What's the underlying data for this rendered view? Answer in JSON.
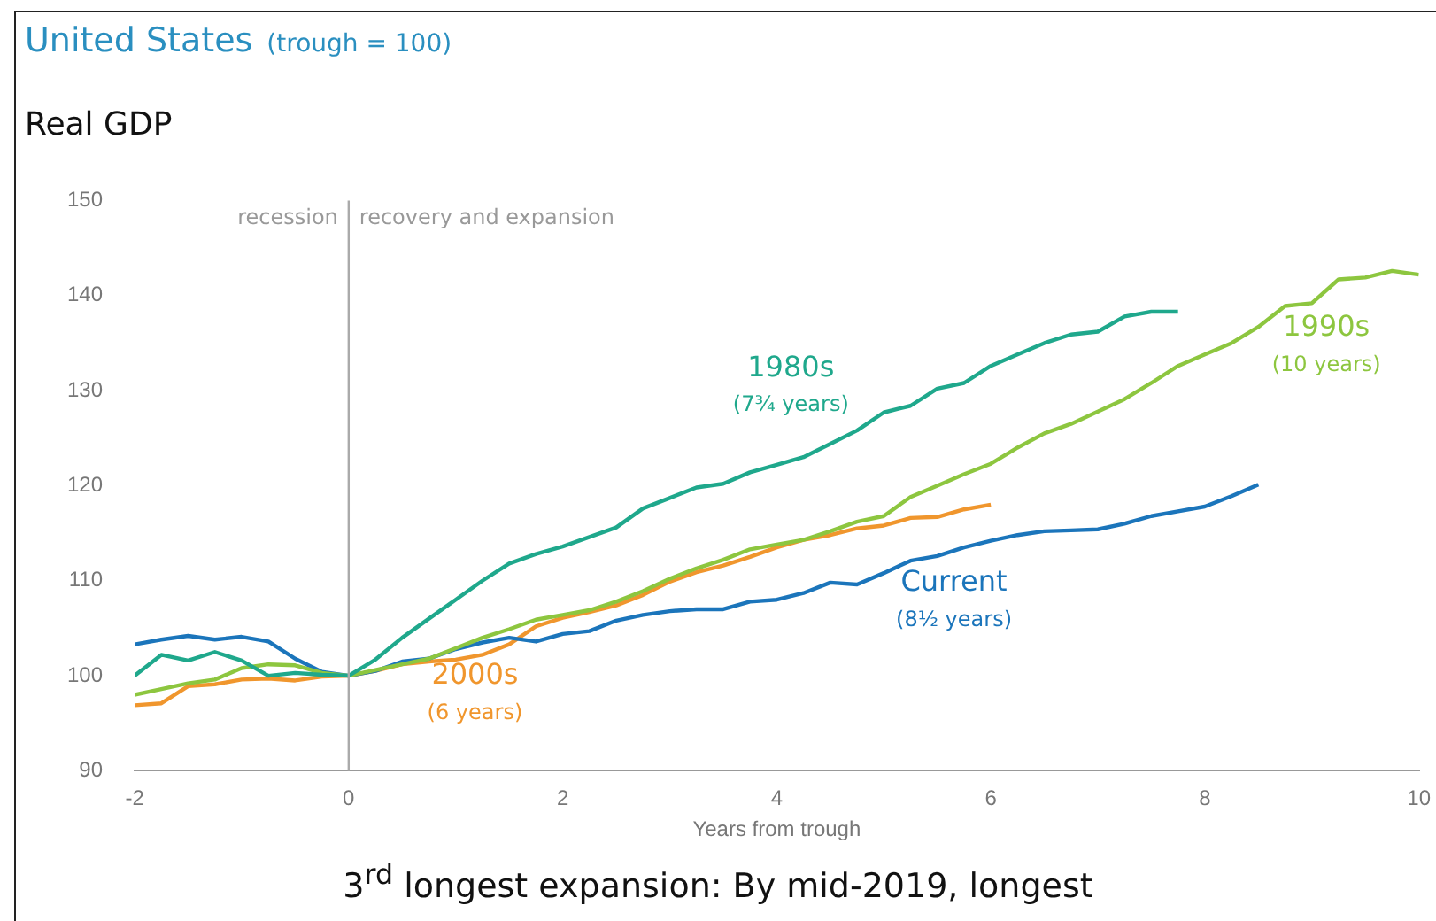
{
  "chart_data": {
    "type": "line",
    "title": "United States",
    "subtitle": "(trough = 100)",
    "ylabel": "Real GDP",
    "xlabel": "Years from trough",
    "xlim": [
      -2,
      10
    ],
    "xticks": [
      -2,
      0,
      2,
      4,
      6,
      8,
      10
    ],
    "ylim": [
      90,
      150
    ],
    "yticks": [
      90,
      100,
      110,
      120,
      130,
      140,
      150
    ],
    "grid": false,
    "legend": false,
    "marker": "none",
    "line_style": "solid",
    "series": [
      {
        "name": "1980s",
        "color": "#1fa88c",
        "x": [
          -2,
          -1.75,
          -1.5,
          -1.25,
          -1,
          -0.75,
          -0.5,
          -0.25,
          0,
          0.25,
          0.5,
          0.75,
          1,
          1.25,
          1.5,
          1.75,
          2,
          2.25,
          2.5,
          2.75,
          3,
          3.25,
          3.5,
          3.75,
          4,
          4.25,
          4.5,
          4.75,
          5,
          5.25,
          5.5,
          5.75,
          6,
          6.25,
          6.5,
          6.75,
          7,
          7.25,
          7.5,
          7.75
        ],
        "values": [
          100,
          102.2,
          101.6,
          102.5,
          101.6,
          100,
          100.3,
          100.1,
          100,
          101.7,
          104,
          106,
          108,
          110,
          111.8,
          112.8,
          113.6,
          114.6,
          115.6,
          117.6,
          118.7,
          119.8,
          120.2,
          121.4,
          122.2,
          123,
          124.4,
          125.8,
          127.7,
          128.4,
          130.2,
          130.8,
          132.6,
          133.8,
          135,
          135.9,
          136.2,
          137.8,
          138.3,
          138.3
        ]
      },
      {
        "name": "1990s",
        "color": "#8dc63f",
        "x": [
          -2,
          -1.75,
          -1.5,
          -1.25,
          -1,
          -0.75,
          -0.5,
          -0.25,
          0,
          0.25,
          0.5,
          0.75,
          1,
          1.25,
          1.5,
          1.75,
          2,
          2.25,
          2.5,
          2.75,
          3,
          3.25,
          3.5,
          3.75,
          4,
          4.25,
          4.5,
          4.75,
          5,
          5.25,
          5.5,
          5.75,
          6,
          6.25,
          6.5,
          6.75,
          7,
          7.25,
          7.5,
          7.75,
          8,
          8.25,
          8.5,
          8.75,
          9,
          9.25,
          9.5,
          9.75,
          10
        ],
        "values": [
          98,
          98.6,
          99.2,
          99.6,
          100.8,
          101.2,
          101.1,
          100.3,
          100,
          100.6,
          101.2,
          101.8,
          102.9,
          104,
          104.9,
          105.9,
          106.4,
          106.9,
          107.8,
          108.9,
          110.2,
          111.3,
          112.2,
          113.3,
          113.8,
          114.3,
          115.2,
          116.2,
          116.8,
          118.8,
          120,
          121.2,
          122.3,
          124,
          125.5,
          126.5,
          127.8,
          129.1,
          130.8,
          132.6,
          133.8,
          135,
          136.7,
          138.9,
          139.2,
          141.7,
          141.9,
          142.6,
          142.2
        ]
      },
      {
        "name": "Current",
        "color": "#1b75bb",
        "x": [
          -2,
          -1.75,
          -1.5,
          -1.25,
          -1,
          -0.75,
          -0.5,
          -0.25,
          0,
          0.25,
          0.5,
          0.75,
          1,
          1.25,
          1.5,
          1.75,
          2,
          2.25,
          2.5,
          2.75,
          3,
          3.25,
          3.5,
          3.75,
          4,
          4.25,
          4.5,
          4.75,
          5,
          5.25,
          5.5,
          5.75,
          6,
          6.25,
          6.5,
          6.75,
          7,
          7.25,
          7.5,
          7.75,
          8,
          8.25,
          8.5
        ],
        "values": [
          103.3,
          103.8,
          104.2,
          103.8,
          104.1,
          103.6,
          101.8,
          100.4,
          100,
          100.5,
          101.5,
          101.8,
          102.8,
          103.5,
          104,
          103.6,
          104.4,
          104.7,
          105.8,
          106.4,
          106.8,
          107,
          107,
          107.8,
          108,
          108.7,
          109.8,
          109.6,
          110.8,
          112.1,
          112.6,
          113.5,
          114.2,
          114.8,
          115.2,
          115.3,
          115.4,
          116,
          116.8,
          117.3,
          117.8,
          118.9,
          120.1
        ]
      },
      {
        "name": "2000s",
        "color": "#f0962d",
        "x": [
          -2,
          -1.75,
          -1.5,
          -1.25,
          -1,
          -0.75,
          -0.5,
          -0.25,
          0,
          0.25,
          0.5,
          0.75,
          1,
          1.25,
          1.5,
          1.75,
          2,
          2.25,
          2.5,
          2.75,
          3,
          3.25,
          3.5,
          3.75,
          4,
          4.25,
          4.5,
          4.75,
          5,
          5.25,
          5.5,
          5.75,
          6
        ],
        "values": [
          96.9,
          97.1,
          98.9,
          99.1,
          99.6,
          99.7,
          99.5,
          99.9,
          100,
          100.5,
          101.2,
          101.5,
          101.7,
          102.2,
          103.3,
          105.2,
          106.1,
          106.7,
          107.4,
          108.5,
          109.9,
          110.9,
          111.6,
          112.5,
          113.5,
          114.3,
          114.8,
          115.5,
          115.8,
          116.6,
          116.7,
          117.5,
          118
        ]
      }
    ],
    "annotations": [
      "(7¾ years)",
      "(10 years)",
      "(8½ years)",
      "(6 years)",
      "recession",
      "recovery and expansion",
      "3$^{rd}$ longest expansion: By mid-2019, longest"
    ],
    "ref_lines": [
      {
        "axis": "x",
        "value": 0,
        "color": "#aaaaaa"
      }
    ]
  }
}
